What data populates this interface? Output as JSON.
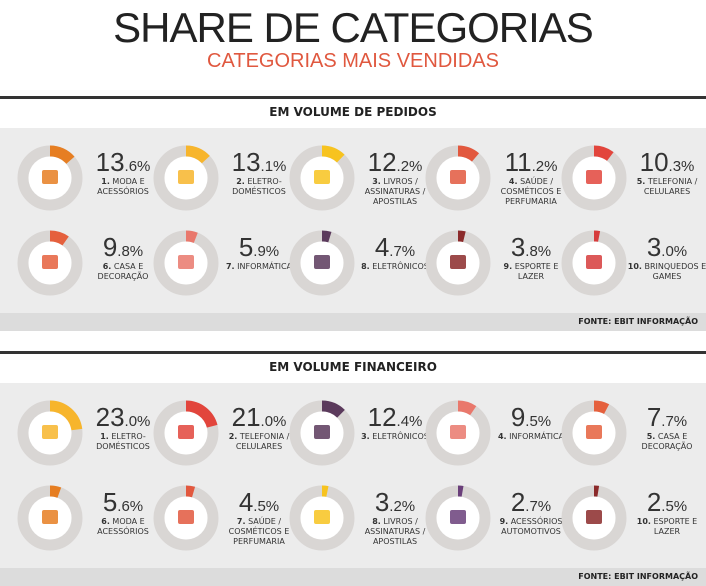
{
  "title": "SHARE DE CATEGORIAS",
  "subtitle": "CATEGORIAS MAIS VENDIDAS",
  "chart_data": [
    {
      "type": "donut",
      "title": "EM VOLUME DE PEDIDOS",
      "source": "FONTE: EBIT INFORMAÇÃO",
      "ranks": [
        "1.",
        "2.",
        "3.",
        "4.",
        "5.",
        "6.",
        "7.",
        "8.",
        "9.",
        "10."
      ],
      "categories": [
        "MODA E ACESSÓRIOS",
        "ELETRO-DOMÉSTICOS",
        "LIVROS / ASSINATURAS / APOSTILAS",
        "SAÚDE / COSMÉTICOS E PERFUMARIA",
        "TELEFONIA / CELULARES",
        "CASA E DECORAÇÃO",
        "INFORMÁTICA",
        "ELETRÔNICOS",
        "ESPORTE E LAZER",
        "BRINQUEDOS E GAMES"
      ],
      "values": [
        13.6,
        13.1,
        12.2,
        11.2,
        10.3,
        9.8,
        5.9,
        4.7,
        3.8,
        3.0
      ],
      "value_labels": [
        "13.6%",
        "13.1%",
        "12.2%",
        "11.2%",
        "10.3%",
        "9.8%",
        "5.9%",
        "4.7%",
        "3.8%",
        "3.0%"
      ],
      "colors": [
        "#e67e22",
        "#f7b52c",
        "#f7c31f",
        "#e2583e",
        "#e2453c",
        "#e5603d",
        "#e9786c",
        "#5b3a5c",
        "#8b2a2a",
        "#d63c3c"
      ]
    },
    {
      "type": "donut",
      "title": "EM VOLUME FINANCEIRO",
      "source": "FONTE: EBIT INFORMAÇÃO",
      "ranks": [
        "1.",
        "2.",
        "3.",
        "4.",
        "5.",
        "6.",
        "7.",
        "8.",
        "9.",
        "10."
      ],
      "categories": [
        "ELETRO-DOMÉSTICOS",
        "TELEFONIA / CELULARES",
        "ELETRÔNICOS",
        "INFORMÁTICA",
        "CASA E DECORAÇÃO",
        "MODA E ACESSÓRIOS",
        "SAÚDE / COSMÉTICOS E PERFUMARIA",
        "LIVROS / ASSINATURAS / APOSTILAS",
        "ACESSÓRIOS AUTOMOTIVOS",
        "ESPORTE E LAZER"
      ],
      "values": [
        23.0,
        21.0,
        12.4,
        9.5,
        7.7,
        5.6,
        4.5,
        3.2,
        2.7,
        2.5
      ],
      "value_labels": [
        "23.0%",
        "21.0%",
        "12.4%",
        "9.5%",
        "7.7%",
        "5.6%",
        "4.5%",
        "3.2%",
        "2.7%",
        "2.5%"
      ],
      "colors": [
        "#f7b52c",
        "#e2453c",
        "#5b3a5c",
        "#e9786c",
        "#e5603d",
        "#e67e22",
        "#e2583e",
        "#f7c31f",
        "#6a3f7a",
        "#8b2a2a"
      ]
    }
  ]
}
